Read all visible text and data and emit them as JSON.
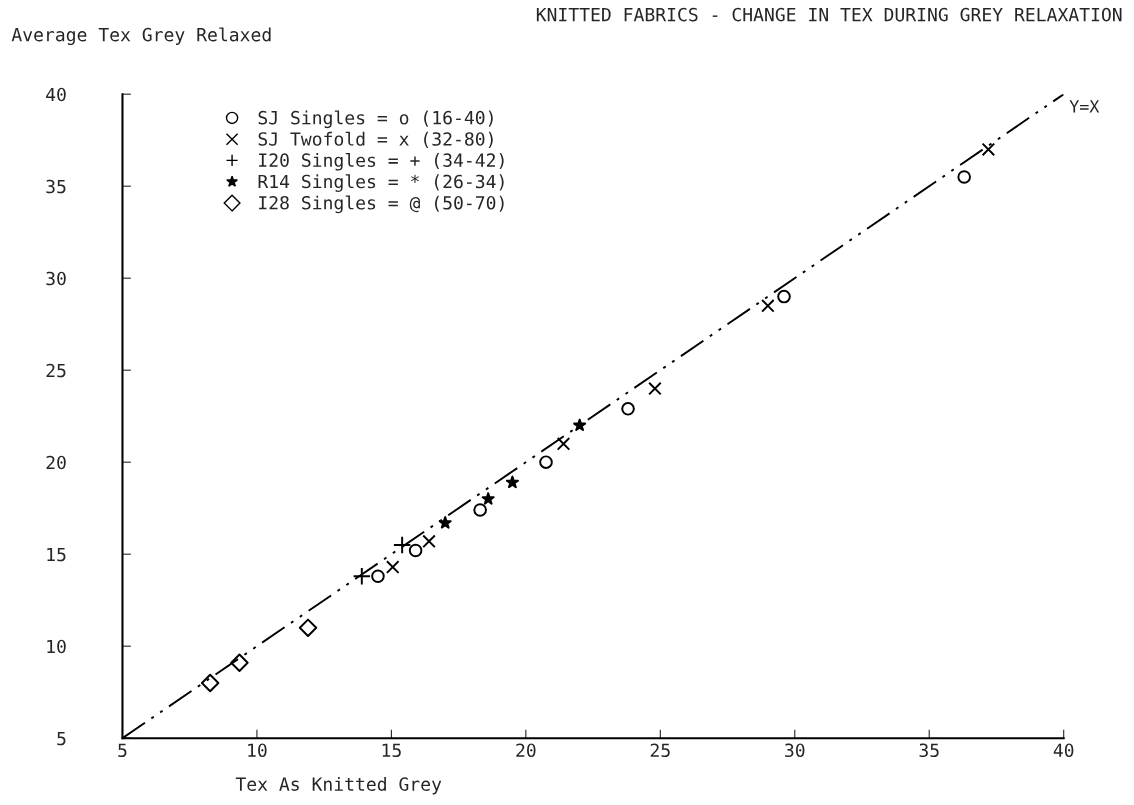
{
  "chart_data": {
    "type": "scatter",
    "title": "KNITTED FABRICS - CHANGE IN TEX DURING GREY RELAXATION",
    "xlabel": "Tex As Knitted Grey",
    "ylabel": "Average Tex Grey Relaxed",
    "xlim": [
      5,
      40
    ],
    "ylim": [
      5,
      40
    ],
    "xticks": [
      5,
      10,
      15,
      20,
      25,
      30,
      35,
      40
    ],
    "yticks": [
      5,
      10,
      15,
      20,
      25,
      30,
      35,
      40
    ],
    "grid": false,
    "legend": "top left",
    "series": [
      {
        "name": "SJ Singles = o (16-40)",
        "color": "#000000",
        "marker": "circle",
        "x": [
          14.5,
          15.9,
          18.3,
          20.75,
          23.8,
          29.6,
          36.3
        ],
        "values": [
          13.8,
          15.2,
          17.4,
          20.0,
          22.9,
          29.0,
          35.5
        ]
      },
      {
        "name": "SJ Twofold = x (32-80)",
        "color": "#000000",
        "marker": "cross",
        "x": [
          15.05,
          16.4,
          21.4,
          24.8,
          29.0,
          37.2
        ],
        "values": [
          14.3,
          15.7,
          21.0,
          24.0,
          28.5,
          37.0
        ]
      },
      {
        "name": "I20 Singles = + (34-42)",
        "color": "#000000",
        "marker": "plus",
        "x": [
          13.9,
          15.4
        ],
        "values": [
          13.8,
          15.5
        ]
      },
      {
        "name": "R14 Singles = * (26-34)",
        "color": "#000000",
        "marker": "star",
        "x": [
          17.0,
          18.6,
          19.5,
          22.0
        ],
        "values": [
          16.7,
          18.0,
          18.9,
          22.0
        ]
      },
      {
        "name": "I28 Singles = @ (50-70)",
        "color": "#000000",
        "marker": "diamond",
        "x": [
          8.26,
          9.35,
          11.9
        ],
        "values": [
          8.0,
          9.1,
          11.0
        ]
      },
      {
        "name": "Y=X",
        "type": "line",
        "color": "#000000",
        "line_style": "dashdotdot",
        "marker": "none",
        "x": [
          5,
          40
        ],
        "values": [
          5,
          40
        ]
      }
    ]
  }
}
